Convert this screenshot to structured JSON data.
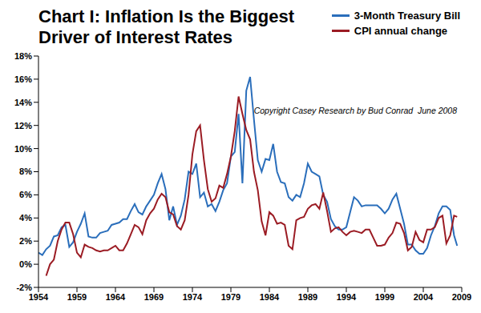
{
  "chart_data": {
    "type": "line",
    "title": "Chart I: Inflation Is the Biggest Driver of Interest Rates",
    "annotations": [
      "Copyright Casey Research by Bud Conrad  June 2008"
    ],
    "x": [
      1954,
      1954.5,
      1955,
      1955.5,
      1956,
      1956.5,
      1957,
      1957.5,
      1958,
      1958.5,
      1959,
      1959.5,
      1960,
      1960.5,
      1961,
      1961.5,
      1962,
      1962.5,
      1963,
      1963.5,
      1964,
      1964.5,
      1965,
      1965.5,
      1966,
      1966.5,
      1967,
      1967.5,
      1968,
      1968.5,
      1969,
      1969.5,
      1970,
      1970.5,
      1971,
      1971.5,
      1972,
      1972.5,
      1973,
      1973.5,
      1974,
      1974.5,
      1975,
      1975.5,
      1976,
      1976.5,
      1977,
      1977.5,
      1978,
      1978.5,
      1979,
      1979.5,
      1980,
      1980.5,
      1981,
      1981.5,
      1982,
      1982.5,
      1983,
      1983.5,
      1984,
      1984.5,
      1985,
      1985.5,
      1986,
      1986.5,
      1987,
      1987.5,
      1988,
      1988.5,
      1989,
      1989.5,
      1990,
      1990.5,
      1991,
      1991.5,
      1992,
      1992.5,
      1993,
      1993.5,
      1994,
      1994.5,
      1995,
      1995.5,
      1996,
      1996.5,
      1997,
      1997.5,
      1998,
      1998.5,
      1999,
      1999.5,
      2000,
      2000.5,
      2001,
      2001.5,
      2002,
      2002.5,
      2003,
      2003.5,
      2004,
      2004.5,
      2005,
      2005.5,
      2006,
      2006.5,
      2007,
      2007.5,
      2008,
      2008.4
    ],
    "series": [
      {
        "name": "3-Month Treasury Bill",
        "color": "#2a6ebb",
        "values": [
          1.0,
          0.8,
          1.3,
          1.6,
          2.4,
          2.5,
          3.2,
          3.4,
          1.5,
          1.9,
          2.8,
          3.5,
          4.4,
          2.4,
          2.3,
          2.3,
          2.7,
          2.8,
          2.9,
          3.4,
          3.5,
          3.6,
          3.9,
          3.9,
          4.6,
          5.2,
          4.5,
          4.3,
          5.0,
          5.5,
          6.0,
          7.0,
          7.8,
          6.5,
          3.8,
          5.0,
          3.4,
          4.2,
          5.6,
          8.0,
          7.8,
          8.7,
          5.8,
          6.2,
          5.0,
          5.2,
          4.6,
          5.4,
          6.4,
          7.0,
          9.3,
          9.7,
          13.0,
          7.0,
          15.0,
          16.2,
          12.5,
          9.0,
          8.0,
          9.1,
          9.0,
          10.4,
          8.0,
          7.1,
          7.0,
          5.8,
          5.5,
          6.0,
          5.8,
          7.0,
          8.7,
          8.0,
          7.8,
          7.6,
          6.0,
          5.4,
          3.9,
          3.3,
          3.0,
          3.0,
          3.2,
          4.5,
          5.8,
          5.5,
          5.0,
          5.1,
          5.1,
          5.1,
          5.1,
          4.8,
          4.4,
          4.8,
          5.6,
          6.1,
          4.8,
          3.5,
          1.7,
          1.7,
          1.2,
          0.9,
          0.9,
          1.4,
          2.5,
          3.3,
          4.4,
          5.0,
          5.0,
          4.7,
          2.5,
          1.6
        ]
      },
      {
        "name": "CPI annual change",
        "color": "#9b1c24",
        "values": [
          null,
          null,
          -1.0,
          0.0,
          0.4,
          2.0,
          3.0,
          3.6,
          3.6,
          2.6,
          1.0,
          0.6,
          1.7,
          1.5,
          1.4,
          1.2,
          1.1,
          1.2,
          1.2,
          1.4,
          1.6,
          1.2,
          1.2,
          1.8,
          2.6,
          3.4,
          3.2,
          2.6,
          3.8,
          4.4,
          4.8,
          5.6,
          6.1,
          5.8,
          4.5,
          4.3,
          3.3,
          3.0,
          3.8,
          6.0,
          9.5,
          11.5,
          12.0,
          9.0,
          6.5,
          5.4,
          5.7,
          6.8,
          6.6,
          7.8,
          9.3,
          11.5,
          14.5,
          13.0,
          11.6,
          10.8,
          8.0,
          6.4,
          3.7,
          2.5,
          4.5,
          4.2,
          3.5,
          3.6,
          3.4,
          1.6,
          1.3,
          3.8,
          4.0,
          4.1,
          4.8,
          5.1,
          5.2,
          4.8,
          6.2,
          4.6,
          2.8,
          3.1,
          3.2,
          2.8,
          2.5,
          2.8,
          2.9,
          2.8,
          2.7,
          3.0,
          3.0,
          2.3,
          1.6,
          1.6,
          1.7,
          2.3,
          2.7,
          3.6,
          3.5,
          2.7,
          1.2,
          1.5,
          2.8,
          2.1,
          1.9,
          3.0,
          3.0,
          3.2,
          4.0,
          4.2,
          1.8,
          2.5,
          4.2,
          4.1
        ]
      }
    ],
    "xlim": [
      1954,
      2009
    ],
    "xticks": [
      1954,
      1959,
      1964,
      1969,
      1974,
      1979,
      1984,
      1989,
      1994,
      1999,
      2004,
      2009
    ],
    "ylim": [
      -2,
      18
    ],
    "yticks": [
      {
        "value": -2,
        "label": "-2%"
      },
      {
        "value": 0,
        "label": "0%"
      },
      {
        "value": 2,
        "label": "2%"
      },
      {
        "value": 4,
        "label": "4%"
      },
      {
        "value": 6,
        "label": "6%"
      },
      {
        "value": 8,
        "label": "8%"
      },
      {
        "value": 10,
        "label": "10%"
      },
      {
        "value": 12,
        "label": "12%"
      },
      {
        "value": 14,
        "label": "14%"
      },
      {
        "value": 16,
        "label": "16%"
      },
      {
        "value": 18,
        "label": "18%"
      }
    ],
    "grid": false,
    "legend": "top-right"
  }
}
